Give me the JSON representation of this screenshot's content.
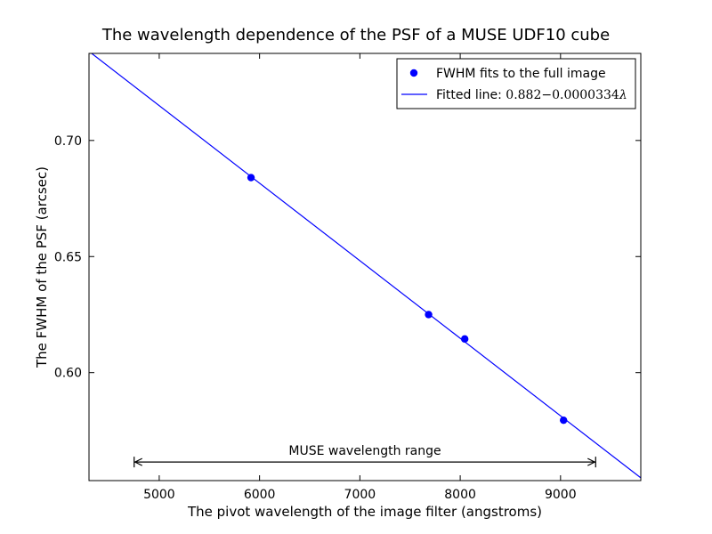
{
  "chart_data": {
    "type": "scatter",
    "title": "The wavelength dependence of the PSF of a MUSE UDF10 cube",
    "xlabel": "The pivot wavelength of the image filter (angstroms)",
    "ylabel": "The FWHM of the PSF (arcsec)",
    "xlim": [
      4300,
      9800
    ],
    "ylim": [
      0.5535,
      0.7375
    ],
    "x_ticks": [
      5000,
      6000,
      7000,
      8000,
      9000
    ],
    "x_tick_labels": [
      "5000",
      "6000",
      "7000",
      "8000",
      "9000"
    ],
    "y_ticks": [
      0.6,
      0.65,
      0.7
    ],
    "y_tick_labels": [
      "0.60",
      "0.65",
      "0.70"
    ],
    "grid": false,
    "legend_position": "top-right",
    "series": [
      {
        "name": "FWHM fits to the full image",
        "kind": "points",
        "color": "#0000ff",
        "x": [
          5915,
          7685,
          8045,
          9030
        ],
        "y": [
          0.684,
          0.625,
          0.6145,
          0.5795
        ]
      },
      {
        "name_prefix": "Fitted line: ",
        "name_formula": "0.882−0.0000334",
        "name_symbol": "λ",
        "kind": "line",
        "color": "#0000ff",
        "intercept": 0.882,
        "slope": -3.34e-05
      }
    ],
    "annotations": [
      {
        "text": "MUSE wavelength range",
        "x_start": 4750,
        "x_end": 9350,
        "y": 0.5615
      }
    ]
  }
}
